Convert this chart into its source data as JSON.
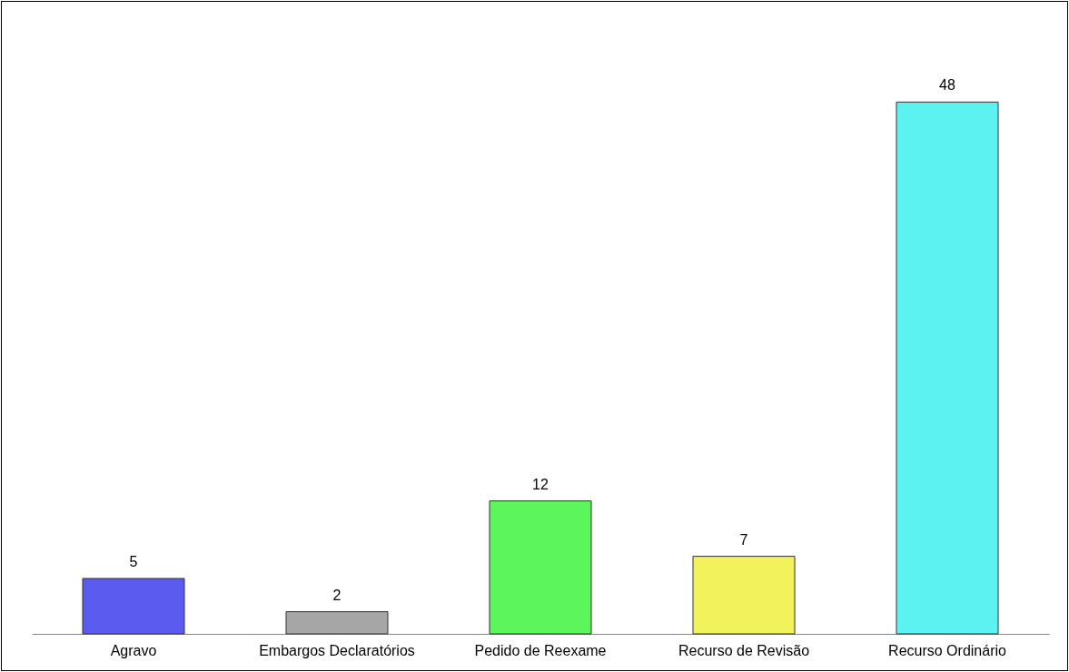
{
  "chart_data": {
    "type": "bar",
    "categories": [
      "Agravo",
      "Embargos Declaratórios",
      "Pedido de Reexame",
      "Recurso de Revisão",
      "Recurso Ordinário"
    ],
    "values": [
      5,
      2,
      12,
      7,
      48
    ],
    "colors": [
      "#5b5bf0",
      "#a6a6a6",
      "#5cf55c",
      "#f2f25c",
      "#5cf2f2"
    ],
    "data_labels": true
  }
}
